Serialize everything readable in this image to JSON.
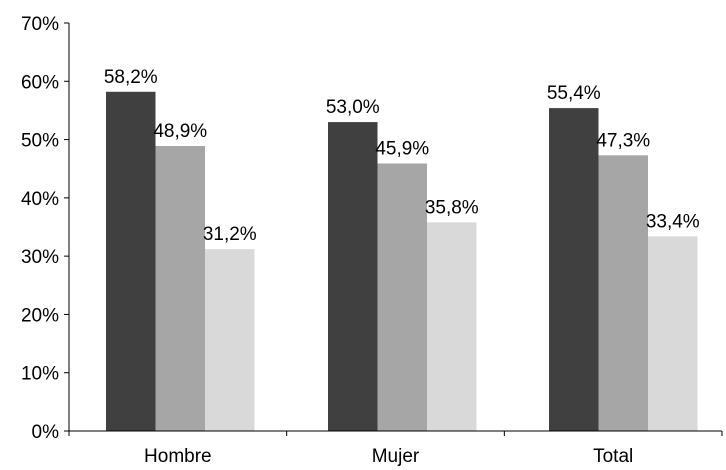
{
  "chart_data": {
    "type": "bar",
    "title": "",
    "xlabel": "",
    "ylabel": "",
    "categories": [
      "Hombre",
      "Mujer",
      "Total"
    ],
    "series": [
      {
        "values": [
          58.2,
          53.0,
          55.4
        ],
        "labels": [
          "58,2%",
          "53,0%",
          "55,4%"
        ],
        "color": "#404040"
      },
      {
        "values": [
          48.9,
          45.9,
          47.3
        ],
        "labels": [
          "48,9%",
          "45,9%",
          "47,3%"
        ],
        "color": "#a6a6a6"
      },
      {
        "values": [
          31.2,
          35.8,
          33.4
        ],
        "labels": [
          "31,2%",
          "35,8%",
          "33,4%"
        ],
        "color": "#d9d9d9"
      }
    ],
    "ylim": [
      0,
      70
    ],
    "yticks": [
      0,
      10,
      20,
      30,
      40,
      50,
      60,
      70
    ],
    "ytick_labels": [
      "0%",
      "10%",
      "20%",
      "30%",
      "40%",
      "50%",
      "60%",
      "70%"
    ],
    "grid": false,
    "legend": "none"
  }
}
